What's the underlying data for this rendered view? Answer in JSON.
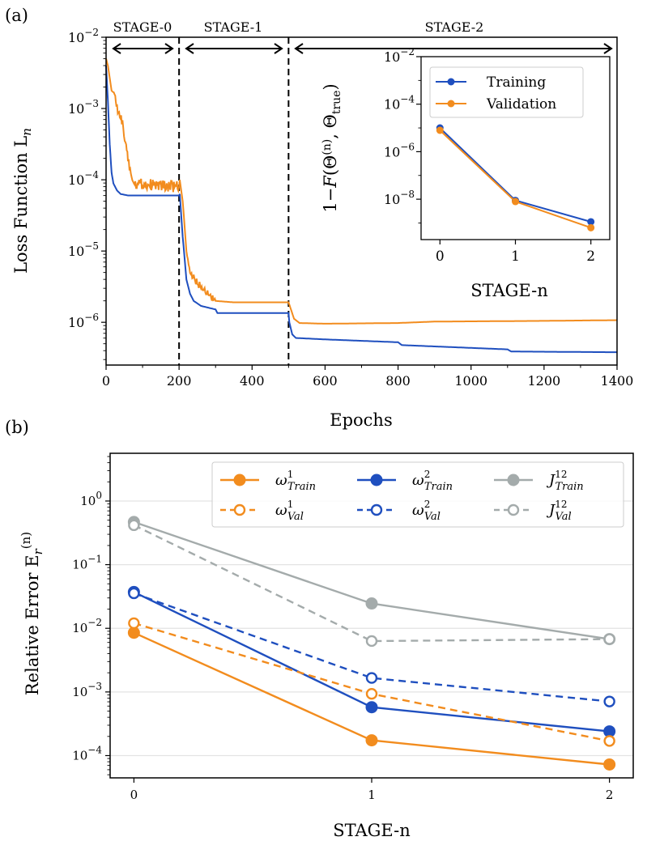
{
  "colors": {
    "training": "#1f4fbf",
    "validation": "#f28c1e",
    "j": "#a4abab"
  },
  "panel_a": {
    "label": "(a)",
    "stages": [
      "STAGE-0",
      "STAGE-1",
      "STAGE-2"
    ],
    "inset_legend": [
      "Training",
      "Validation"
    ]
  },
  "panel_b": {
    "label": "(b)",
    "legend": [
      {
        "sym": "ω",
        "sup": "1",
        "sub": "Train",
        "series": "omega1_train"
      },
      {
        "sym": "ω",
        "sup": "2",
        "sub": "Train",
        "series": "omega2_train"
      },
      {
        "sym": "J",
        "sup": "12",
        "sub": "Train",
        "series": "J12_train"
      },
      {
        "sym": "ω",
        "sup": "1",
        "sub": "Val",
        "series": "omega1_val"
      },
      {
        "sym": "ω",
        "sup": "2",
        "sub": "Val",
        "series": "omega2_val"
      },
      {
        "sym": "J",
        "sup": "12",
        "sub": "Val",
        "series": "J12_val"
      }
    ]
  },
  "chart_data": [
    {
      "id": "loss",
      "type": "line",
      "title": "",
      "xlabel": "Epochs",
      "ylabel_main": "Loss Function L",
      "ylabel_sub": "n",
      "xlim": [
        0,
        1400
      ],
      "ylim_log10": [
        -6.6,
        -2
      ],
      "xticks": [
        0,
        200,
        400,
        600,
        800,
        1000,
        1200,
        1400
      ],
      "yticks": [
        {
          "mant": "10",
          "exp": "−2",
          "value_log10": -2
        },
        {
          "mant": "10",
          "exp": "−3",
          "value_log10": -3
        },
        {
          "mant": "10",
          "exp": "−4",
          "value_log10": -4
        },
        {
          "mant": "10",
          "exp": "−5",
          "value_log10": -5
        },
        {
          "mant": "10",
          "exp": "−6",
          "value_log10": -6
        }
      ],
      "stage_boundaries": [
        200,
        500
      ],
      "series": [
        {
          "name": "Training",
          "log10": [
            [
              0,
              -2.4
            ],
            [
              5,
              -2.9
            ],
            [
              10,
              -3.5
            ],
            [
              15,
              -3.9
            ],
            [
              20,
              -4.05
            ],
            [
              30,
              -4.15
            ],
            [
              40,
              -4.2
            ],
            [
              60,
              -4.22
            ],
            [
              200,
              -4.22
            ],
            [
              202,
              -4.2
            ],
            [
              210,
              -4.8
            ],
            [
              220,
              -5.4
            ],
            [
              230,
              -5.6
            ],
            [
              240,
              -5.7
            ],
            [
              260,
              -5.77
            ],
            [
              300,
              -5.82
            ],
            [
              305,
              -5.87
            ],
            [
              500,
              -5.87
            ],
            [
              502,
              -6.0
            ],
            [
              510,
              -6.17
            ],
            [
              520,
              -6.22
            ],
            [
              600,
              -6.24
            ],
            [
              800,
              -6.28
            ],
            [
              810,
              -6.32
            ],
            [
              1100,
              -6.38
            ],
            [
              1110,
              -6.41
            ],
            [
              1400,
              -6.42
            ]
          ]
        },
        {
          "name": "Validation",
          "log10": [
            [
              0,
              -2.3
            ],
            [
              5,
              -2.4
            ],
            [
              15,
              -2.75
            ],
            [
              25,
              -2.8
            ],
            [
              30,
              -3.0
            ],
            [
              45,
              -3.2
            ],
            [
              55,
              -3.55
            ],
            [
              60,
              -3.7
            ],
            [
              70,
              -3.95
            ],
            [
              80,
              -4.05
            ],
            [
              200,
              -4.1
            ],
            [
              202,
              -4.0
            ],
            [
              210,
              -4.3
            ],
            [
              220,
              -5.0
            ],
            [
              230,
              -5.3
            ],
            [
              250,
              -5.45
            ],
            [
              280,
              -5.6
            ],
            [
              300,
              -5.7
            ],
            [
              350,
              -5.72
            ],
            [
              500,
              -5.72
            ],
            [
              502,
              -5.75
            ],
            [
              515,
              -5.95
            ],
            [
              530,
              -6.01
            ],
            [
              600,
              -6.02
            ],
            [
              800,
              -6.01
            ],
            [
              900,
              -5.99
            ],
            [
              1200,
              -5.98
            ],
            [
              1400,
              -5.97
            ]
          ]
        }
      ]
    },
    {
      "id": "fidelity_inset",
      "type": "line",
      "xlabel": "STAGE-n",
      "ylabel": "1−F(Θ(n), Θtrue)",
      "xlim": [
        -0.25,
        2.25
      ],
      "ylim_log10": [
        -9.7,
        -2
      ],
      "xticks": [
        0,
        1,
        2
      ],
      "yticks": [
        {
          "mant": "10",
          "exp": "−2",
          "value_log10": -2
        },
        {
          "mant": "10",
          "exp": "−4",
          "value_log10": -4
        },
        {
          "mant": "10",
          "exp": "−6",
          "value_log10": -6
        },
        {
          "mant": "10",
          "exp": "−8",
          "value_log10": -8
        }
      ],
      "series": [
        {
          "name": "Training",
          "x": [
            0,
            1,
            2
          ],
          "log10": [
            -5.0,
            -8.05,
            -8.95
          ]
        },
        {
          "name": "Validation",
          "x": [
            0,
            1,
            2
          ],
          "log10": [
            -5.1,
            -8.1,
            -9.2
          ]
        }
      ]
    },
    {
      "id": "relative_error",
      "type": "line",
      "xlabel": "STAGE-n",
      "ylabel_main": "Relative Error E",
      "ylabel_sub": "r",
      "ylabel_sup": "(n)",
      "xlim": [
        -0.1,
        2.1
      ],
      "ylim_log10": [
        -4.35,
        0.75
      ],
      "xticks": [
        0,
        1,
        2
      ],
      "yticks": [
        {
          "mant": "10",
          "exp": "0",
          "value_log10": 0
        },
        {
          "mant": "10",
          "exp": "−1",
          "value_log10": -1
        },
        {
          "mant": "10",
          "exp": "−2",
          "value_log10": -2
        },
        {
          "mant": "10",
          "exp": "−3",
          "value_log10": -3
        },
        {
          "mant": "10",
          "exp": "−4",
          "value_log10": -4
        }
      ],
      "series": [
        {
          "name": "omega1_train",
          "x": [
            0,
            1,
            2
          ],
          "log10": [
            -2.07,
            -3.76,
            -4.14
          ]
        },
        {
          "name": "omega2_train",
          "x": [
            0,
            1,
            2
          ],
          "log10": [
            -1.43,
            -3.24,
            -3.62
          ]
        },
        {
          "name": "J12_train",
          "x": [
            0,
            1,
            2
          ],
          "log10": [
            -0.33,
            -1.61,
            -2.17
          ]
        },
        {
          "name": "omega1_val",
          "x": [
            0,
            1,
            2
          ],
          "log10": [
            -1.92,
            -3.03,
            -3.77
          ]
        },
        {
          "name": "omega2_val",
          "x": [
            0,
            1,
            2
          ],
          "log10": [
            -1.45,
            -2.78,
            -3.15
          ]
        },
        {
          "name": "J12_val",
          "x": [
            0,
            1,
            2
          ],
          "log10": [
            -0.38,
            -2.2,
            -2.17
          ]
        }
      ]
    }
  ]
}
